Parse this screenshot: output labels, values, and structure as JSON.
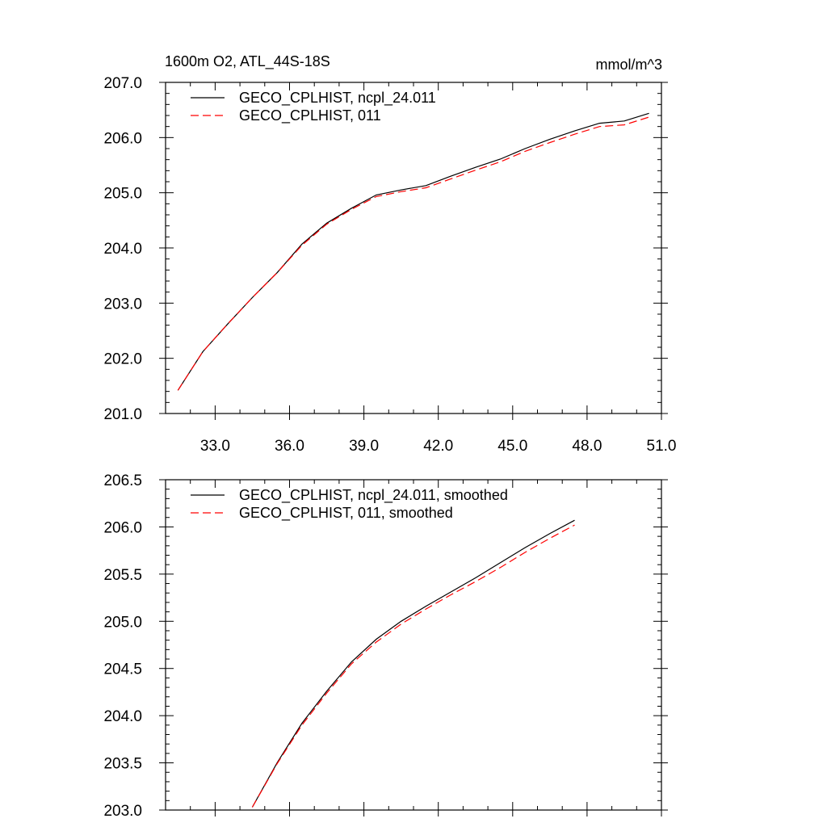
{
  "figure": {
    "title_left": "1600m O2, ATL_44S-18S",
    "title_right": "mmol/m^3"
  },
  "chart_data": [
    {
      "type": "line",
      "title": "1600m O2, ATL_44S-18S",
      "units_label": "mmol/m^3",
      "xlabel": "",
      "ylabel": "",
      "xlim": [
        31.0,
        51.0
      ],
      "ylim": [
        201.0,
        207.0
      ],
      "x_ticks": [
        "33.0",
        "36.0",
        "39.0",
        "42.0",
        "45.0",
        "48.0",
        "51.0"
      ],
      "y_ticks": [
        "201.0",
        "202.0",
        "203.0",
        "204.0",
        "205.0",
        "206.0",
        "207.0"
      ],
      "grid": false,
      "legend_position": "top-left",
      "x": [
        31.5,
        32.5,
        33.5,
        34.5,
        35.5,
        36.5,
        37.5,
        38.5,
        39.5,
        40.5,
        41.5,
        42.5,
        43.5,
        44.5,
        45.5,
        46.5,
        47.5,
        48.5,
        49.5,
        50.5
      ],
      "series": [
        {
          "name": "GECO_CPLHIST, ncpl_24.011",
          "color": "#000000",
          "style": "solid",
          "values": [
            201.42,
            202.12,
            202.62,
            203.1,
            203.55,
            204.07,
            204.45,
            204.72,
            204.96,
            205.05,
            205.13,
            205.3,
            205.46,
            205.61,
            205.8,
            205.97,
            206.12,
            206.26,
            206.3,
            206.44
          ]
        },
        {
          "name": "GECO_CPLHIST, 011",
          "color": "#ff0000",
          "style": "dashed",
          "values": [
            201.42,
            202.12,
            202.62,
            203.1,
            203.55,
            204.05,
            204.43,
            204.7,
            204.93,
            205.02,
            205.09,
            205.25,
            205.41,
            205.56,
            205.75,
            205.91,
            206.06,
            206.2,
            206.23,
            206.37
          ]
        }
      ]
    },
    {
      "type": "line",
      "title": "",
      "xlabel": "",
      "ylabel": "",
      "xlim": [
        31.0,
        51.0
      ],
      "ylim": [
        203.0,
        206.5
      ],
      "x_ticks": [
        "",
        "",
        "",
        "",
        "",
        "",
        ""
      ],
      "y_ticks": [
        "203.0",
        "203.5",
        "204.0",
        "204.5",
        "205.0",
        "205.5",
        "206.0",
        "206.5"
      ],
      "grid": false,
      "legend_position": "top-left",
      "x": [
        34.5,
        35.5,
        36.5,
        37.5,
        38.5,
        39.5,
        40.5,
        41.5,
        42.5,
        43.5,
        44.5,
        45.5,
        46.5,
        47.5
      ],
      "series": [
        {
          "name": "GECO_CPLHIST, ncpl_24.011, smoothed",
          "color": "#000000",
          "style": "solid",
          "values": [
            203.03,
            203.5,
            203.92,
            204.26,
            204.57,
            204.81,
            205.0,
            205.16,
            205.31,
            205.46,
            205.62,
            205.78,
            205.93,
            206.07
          ]
        },
        {
          "name": "GECO_CPLHIST, 011, smoothed",
          "color": "#ff0000",
          "style": "dashed",
          "values": [
            203.03,
            203.49,
            203.9,
            204.24,
            204.55,
            204.78,
            204.97,
            205.13,
            205.28,
            205.42,
            205.57,
            205.73,
            205.88,
            206.02
          ]
        }
      ]
    }
  ]
}
